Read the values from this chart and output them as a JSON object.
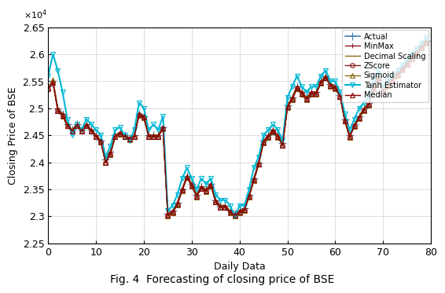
{
  "title": "Fig. 4  Forecasting of closing price of BSE",
  "ylabel": "Closing Price of BSE",
  "xlabel": "Daily Data",
  "xlim": [
    0,
    80
  ],
  "ylim": [
    22500,
    26500
  ],
  "ytick_vals": [
    22500,
    23000,
    23500,
    24000,
    24500,
    25000,
    25500,
    26000,
    26500
  ],
  "ytick_labels": [
    "2.25",
    "2.3",
    "2.35",
    "2.4",
    "2.45",
    "2.5",
    "2.55",
    "2.6",
    "2.65"
  ],
  "xticks": [
    0,
    10,
    20,
    30,
    40,
    50,
    60,
    70,
    80
  ],
  "bg_color": "#f5f5f5",
  "series_order": [
    "actual",
    "minmax",
    "decimal",
    "zscore",
    "sigmoid",
    "tanh",
    "median"
  ],
  "labels": [
    "Actual",
    "MinMax",
    "Decimal Scaling",
    "ZScore",
    "Sigmoid",
    "Tanh Estimator",
    "Median"
  ],
  "colors": [
    "#4682B4",
    "#8B1A1A",
    "#8B6914",
    "#8B1A1A",
    "#8B6914",
    "#00B8D4",
    "#8B0000"
  ],
  "markers": [
    "+",
    "+",
    "None",
    "o",
    "^",
    "v",
    "^"
  ],
  "lws": [
    1.2,
    1.0,
    1.0,
    1.0,
    1.0,
    1.5,
    1.0
  ],
  "mss": [
    7,
    5,
    4,
    4,
    4,
    5,
    4
  ],
  "x": [
    0,
    1,
    2,
    3,
    4,
    5,
    6,
    7,
    8,
    9,
    10,
    11,
    12,
    13,
    14,
    15,
    16,
    17,
    18,
    19,
    20,
    21,
    22,
    23,
    24,
    25,
    26,
    27,
    28,
    29,
    30,
    31,
    32,
    33,
    34,
    35,
    36,
    37,
    38,
    39,
    40,
    41,
    42,
    43,
    44,
    45,
    46,
    47,
    48,
    49,
    50,
    51,
    52,
    53,
    54,
    55,
    56,
    57,
    58,
    59,
    60,
    61,
    62,
    63,
    64,
    65,
    66,
    67,
    68,
    69,
    70,
    71,
    72,
    73,
    74,
    75,
    76,
    77,
    78,
    79
  ],
  "actual": [
    25400,
    25500,
    25000,
    24900,
    24700,
    24600,
    24700,
    24600,
    24700,
    24600,
    24500,
    24400,
    24050,
    24200,
    24500,
    24550,
    24500,
    24450,
    24500,
    24900,
    24850,
    24500,
    24500,
    24500,
    24650,
    23050,
    23100,
    23250,
    23500,
    23750,
    23600,
    23400,
    23550,
    23500,
    23600,
    23300,
    23200,
    23200,
    23100,
    23050,
    23100,
    23150,
    23400,
    23700,
    24000,
    24400,
    24500,
    24600,
    24500,
    24350,
    25050,
    25200,
    25400,
    25300,
    25200,
    25300,
    25300,
    25500,
    25600,
    25450,
    25400,
    25250,
    24800,
    24500,
    24700,
    24850,
    25000,
    25100,
    25400,
    25600,
    25350,
    25450,
    25550,
    25650,
    25750,
    25850,
    25950,
    26050,
    26150,
    26250
  ],
  "minmax": [
    25400,
    25500,
    25000,
    24900,
    24700,
    24600,
    24700,
    24600,
    24700,
    24600,
    24500,
    24400,
    24050,
    24200,
    24500,
    24550,
    24500,
    24450,
    24500,
    24900,
    24850,
    24500,
    24500,
    24500,
    24650,
    23050,
    23100,
    23250,
    23500,
    23750,
    23600,
    23400,
    23550,
    23500,
    23600,
    23300,
    23200,
    23200,
    23100,
    23050,
    23100,
    23150,
    23400,
    23700,
    24000,
    24400,
    24500,
    24600,
    24500,
    24350,
    25050,
    25200,
    25400,
    25300,
    25200,
    25300,
    25300,
    25500,
    25600,
    25450,
    25400,
    25250,
    24800,
    24500,
    24700,
    24850,
    25000,
    25100,
    25400,
    25600,
    25350,
    25450,
    25550,
    25650,
    25750,
    25850,
    25950,
    26050,
    26150,
    26250
  ],
  "decimal": [
    25400,
    25500,
    25000,
    24900,
    24700,
    24600,
    24700,
    24600,
    24700,
    24600,
    24500,
    24400,
    24050,
    24200,
    24500,
    24550,
    24500,
    24450,
    24500,
    24900,
    24850,
    24500,
    24500,
    24500,
    24650,
    23050,
    23100,
    23250,
    23500,
    23750,
    23600,
    23400,
    23550,
    23500,
    23600,
    23300,
    23200,
    23200,
    23100,
    23050,
    23100,
    23150,
    23400,
    23700,
    24000,
    24400,
    24500,
    24600,
    24500,
    24350,
    25050,
    25200,
    25400,
    25300,
    25200,
    25300,
    25300,
    25500,
    25600,
    25450,
    25400,
    25250,
    24800,
    24500,
    24700,
    24850,
    25000,
    25100,
    25400,
    25600,
    25350,
    25450,
    25550,
    25650,
    25750,
    25850,
    25950,
    26050,
    26150,
    26250
  ],
  "zscore": [
    25350,
    25480,
    24970,
    24860,
    24680,
    24580,
    24680,
    24580,
    24680,
    24580,
    24480,
    24380,
    24000,
    24150,
    24480,
    24530,
    24480,
    24430,
    24480,
    24880,
    24830,
    24480,
    24480,
    24480,
    24630,
    23020,
    23070,
    23220,
    23480,
    23720,
    23570,
    23370,
    23520,
    23470,
    23570,
    23270,
    23170,
    23170,
    23070,
    23020,
    23070,
    23120,
    23370,
    23670,
    23970,
    24370,
    24470,
    24570,
    24470,
    24320,
    25020,
    25170,
    25370,
    25270,
    25170,
    25270,
    25270,
    25470,
    25570,
    25420,
    25370,
    25220,
    24770,
    24470,
    24670,
    24820,
    24970,
    25070,
    25370,
    25570,
    25320,
    25420,
    25520,
    25620,
    25720,
    25820,
    25920,
    26020,
    26120,
    26220
  ],
  "sigmoid": [
    25380,
    25520,
    24960,
    24850,
    24670,
    24570,
    24670,
    24570,
    24670,
    24570,
    24470,
    24370,
    23990,
    24140,
    24470,
    24520,
    24470,
    24420,
    24470,
    24870,
    24820,
    24470,
    24470,
    24470,
    24620,
    23010,
    23060,
    23210,
    23470,
    23710,
    23560,
    23360,
    23510,
    23460,
    23560,
    23260,
    23160,
    23160,
    23060,
    23010,
    23060,
    23110,
    23360,
    23660,
    23960,
    24360,
    24460,
    24560,
    24460,
    24310,
    25010,
    25160,
    25360,
    25260,
    25160,
    25260,
    25260,
    25460,
    25560,
    25410,
    25360,
    25210,
    24760,
    24460,
    24660,
    24810,
    24960,
    25060,
    25360,
    25560,
    25310,
    25410,
    25510,
    25610,
    25710,
    25810,
    25910,
    26010,
    26110,
    26210
  ],
  "tanh": [
    25600,
    26000,
    25700,
    25300,
    24800,
    24500,
    24700,
    24600,
    24800,
    24700,
    24600,
    24500,
    24100,
    24300,
    24600,
    24650,
    24500,
    24400,
    24600,
    25100,
    25000,
    24600,
    24700,
    24600,
    24850,
    23100,
    23200,
    23400,
    23700,
    23900,
    23700,
    23500,
    23700,
    23600,
    23700,
    23400,
    23300,
    23300,
    23200,
    23000,
    23200,
    23200,
    23500,
    23900,
    24100,
    24500,
    24600,
    24700,
    24600,
    24400,
    25200,
    25400,
    25600,
    25400,
    25300,
    25400,
    25400,
    25600,
    25700,
    25500,
    25500,
    25300,
    24900,
    24600,
    24800,
    25000,
    25100,
    25200,
    25500,
    25700,
    25400,
    25500,
    25600,
    25700,
    25800,
    25900,
    26000,
    26100,
    26200,
    26300
  ],
  "median": [
    25370,
    25470,
    24960,
    24870,
    24680,
    24580,
    24680,
    24580,
    24680,
    24580,
    24480,
    24380,
    24000,
    24150,
    24480,
    24530,
    24480,
    24430,
    24480,
    24880,
    24830,
    24480,
    24480,
    24480,
    24630,
    23020,
    23070,
    23220,
    23480,
    23720,
    23570,
    23370,
    23520,
    23470,
    23570,
    23270,
    23170,
    23170,
    23070,
    23020,
    23070,
    23120,
    23370,
    23670,
    23970,
    24370,
    24470,
    24570,
    24470,
    24320,
    25020,
    25170,
    25370,
    25270,
    25170,
    25270,
    25270,
    25470,
    25570,
    25420,
    25370,
    25220,
    24770,
    24470,
    24670,
    24820,
    24970,
    25070,
    25370,
    25570,
    25320,
    25420,
    25520,
    25620,
    25720,
    25820,
    25920,
    26020,
    26120,
    26220
  ]
}
